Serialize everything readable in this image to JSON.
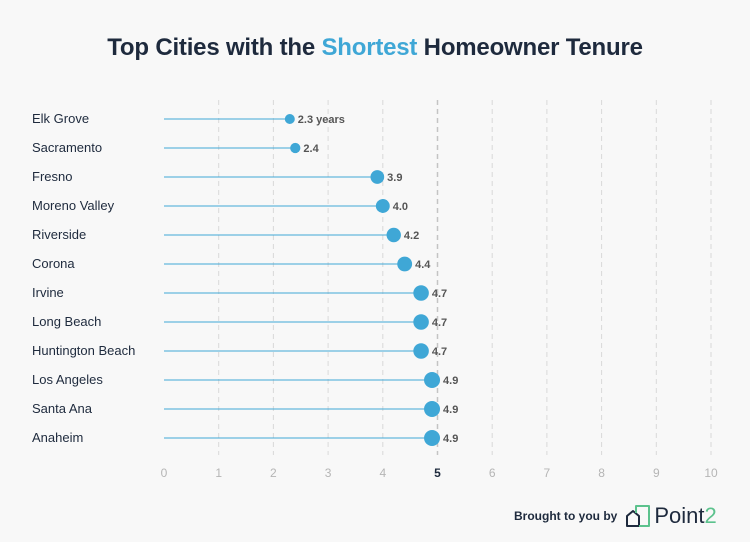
{
  "title": {
    "part1": "Top Cities with the ",
    "highlight": "Shortest",
    "part2": " Homeowner Tenure"
  },
  "footer": {
    "brought_by": "Brought to you by",
    "brand_main": "Point",
    "brand_accent": "2"
  },
  "colors": {
    "accent": "#3fa7d6",
    "title": "#1e2a3d",
    "brand_green": "#5cc28d",
    "grid": "#d9d9d9"
  },
  "chart_data": {
    "type": "lollipop",
    "title": "Top Cities with the Shortest Homeowner Tenure",
    "categories": [
      "Elk Grove",
      "Sacramento",
      "Fresno",
      "Moreno Valley",
      "Riverside",
      "Corona",
      "Irvine",
      "Long Beach",
      "Huntington Beach",
      "Los Angeles",
      "Santa Ana",
      "Anaheim"
    ],
    "values": [
      2.3,
      2.4,
      3.9,
      4.0,
      4.2,
      4.4,
      4.7,
      4.7,
      4.7,
      4.9,
      4.9,
      4.9
    ],
    "value_labels": [
      "2.3 years",
      "2.4",
      "3.9",
      "4.0",
      "4.2",
      "4.4",
      "4.7",
      "4.7",
      "4.7",
      "4.9",
      "4.9",
      "4.9"
    ],
    "xlim": [
      0,
      10
    ],
    "xticks": [
      "0",
      "1",
      "2",
      "3",
      "4",
      "5",
      "6",
      "7",
      "8",
      "9",
      "10"
    ],
    "grid": "vertical dashed",
    "emphasized_tick": "5"
  }
}
